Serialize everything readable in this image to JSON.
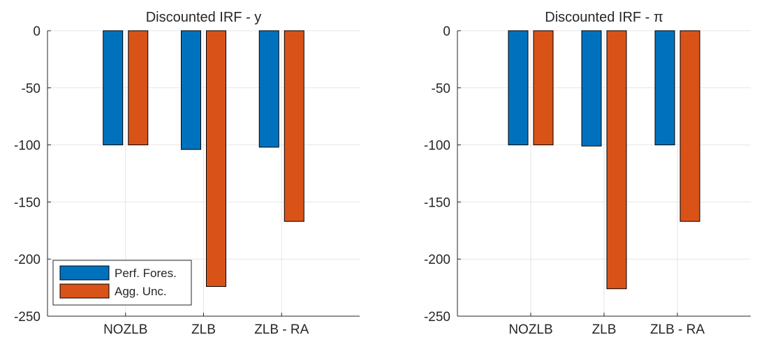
{
  "chart_data": [
    {
      "type": "bar",
      "title": "Discounted IRF - y",
      "categories": [
        "NOZLB",
        "ZLB",
        "ZLB - RA"
      ],
      "series": [
        {
          "name": "Perf. Fores.",
          "values": [
            -100,
            -104,
            -102
          ]
        },
        {
          "name": "Agg. Unc.",
          "values": [
            -100,
            -224,
            -167
          ]
        }
      ],
      "ylim": [
        -250,
        0
      ],
      "yticks": [
        0,
        -50,
        -100,
        -150,
        -200,
        -250
      ],
      "ytick_labels": [
        "0",
        "-50",
        "-100",
        "-150",
        "-200",
        "-250"
      ],
      "grid": true,
      "legend": "bottom-left"
    },
    {
      "type": "bar",
      "title": "Discounted IRF - π",
      "categories": [
        "NOZLB",
        "ZLB",
        "ZLB - RA"
      ],
      "series": [
        {
          "name": "Perf. Fores.",
          "values": [
            -100,
            -101,
            -100
          ]
        },
        {
          "name": "Agg. Unc.",
          "values": [
            -100,
            -226,
            -167
          ]
        }
      ],
      "ylim": [
        -250,
        0
      ],
      "yticks": [
        0,
        -50,
        -100,
        -150,
        -200,
        -250
      ],
      "ytick_labels": [
        "0",
        "-50",
        "-100",
        "-150",
        "-200",
        "-250"
      ],
      "grid": true
    }
  ],
  "colors": {
    "series": [
      "#0072BD",
      "#D95319"
    ],
    "grid": "#e6e6e6",
    "axis": "#262626"
  },
  "legend": {
    "items": [
      "Perf. Fores.",
      "Agg. Unc."
    ]
  }
}
